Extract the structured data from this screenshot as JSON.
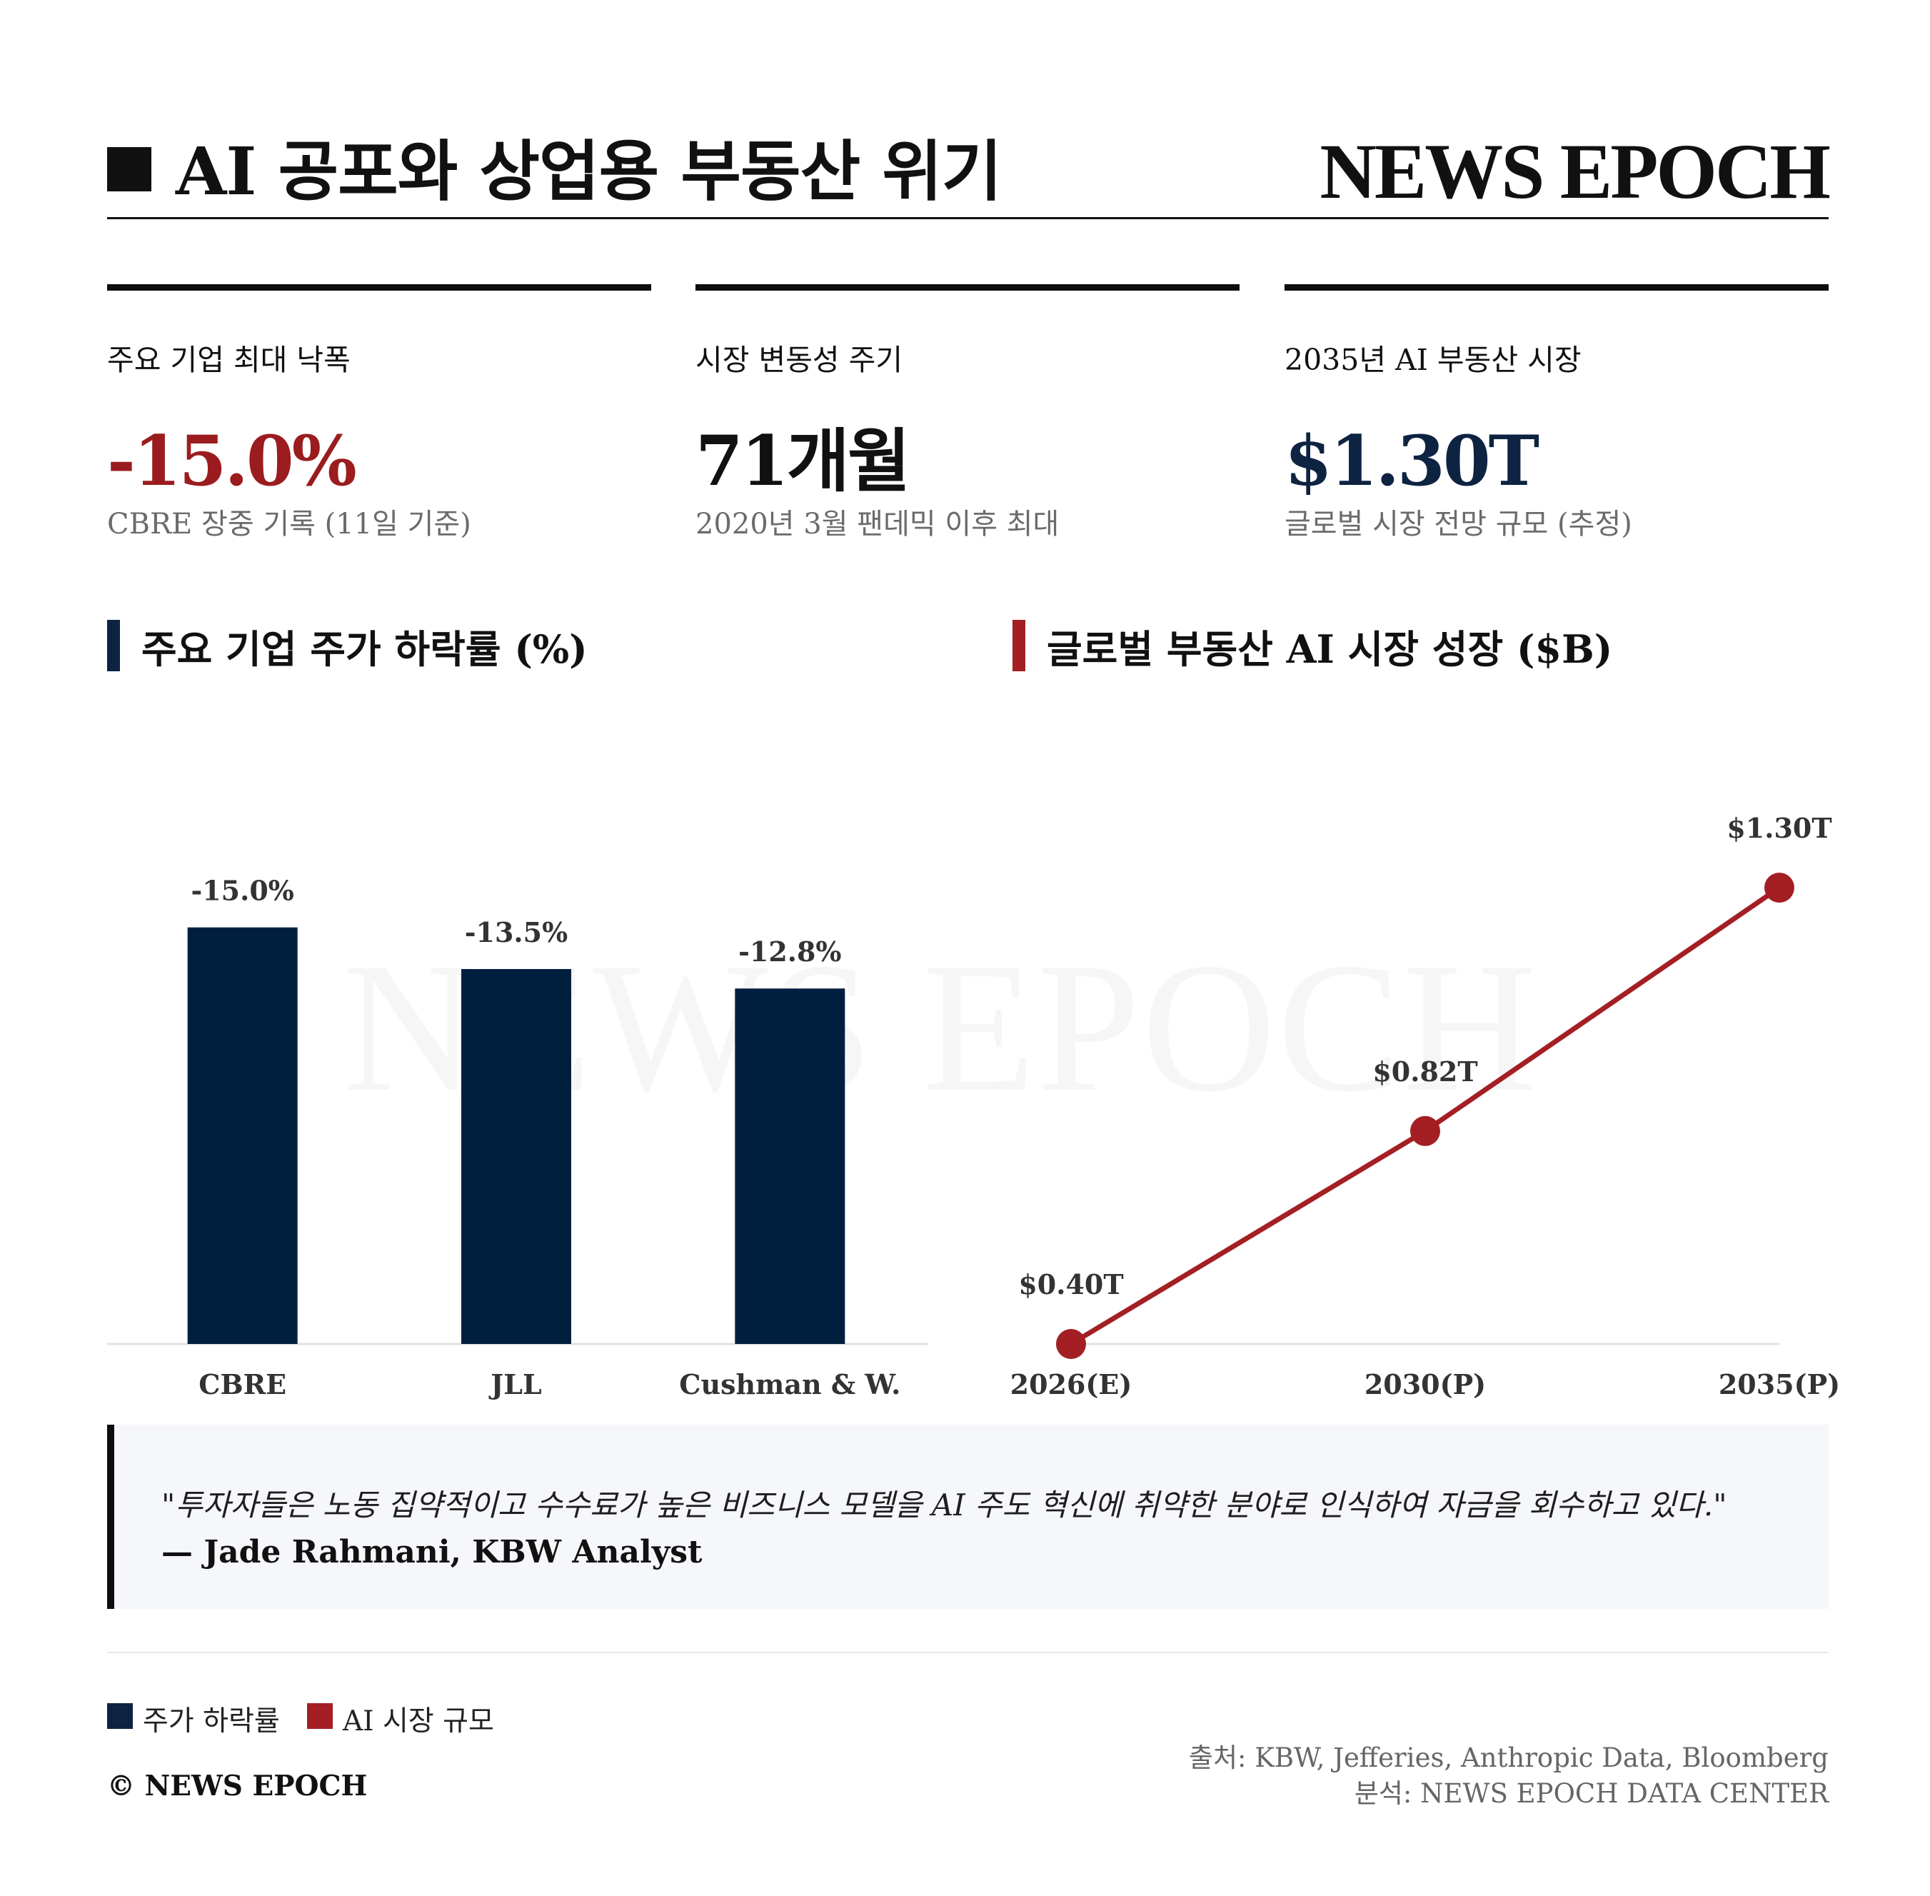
{
  "header": {
    "title": "AI 공포와 상업용 부동산 위기",
    "brand": "NEWS EPOCH"
  },
  "kpis": [
    {
      "label": "주요 기업 최대 낙폭",
      "value": "-15.0%",
      "sub": "CBRE 장중 기록 (11일 기준)",
      "color": "#9b1c1f"
    },
    {
      "label": "시장 변동성 주기",
      "value": "71개월",
      "sub": "2020년 3월 팬데믹 이후 최대",
      "color": "#111111"
    },
    {
      "label": "2035년 AI 부동산 시장",
      "value": "$1.30T",
      "sub": "글로벌 시장 전망 규모 (추정)",
      "color": "#0e2341"
    }
  ],
  "watermark": "NEWS EPOCH",
  "colors": {
    "navy": "#001f3f",
    "red": "#a31f24"
  },
  "chart_data": [
    {
      "type": "bar",
      "title": "주요 기업 주가 하락률 (%)",
      "categories": [
        "CBRE",
        "JLL",
        "Cushman & W."
      ],
      "values": [
        -15.0,
        -13.5,
        -12.8
      ],
      "data_labels": [
        "-15.0%",
        "-13.5%",
        "-12.8%"
      ],
      "ylim": [
        -18,
        0
      ],
      "color": "#001f3f",
      "grid": false
    },
    {
      "type": "line",
      "title": "글로벌 부동산 AI 시장 성장 ($B)",
      "x": [
        "2026(E)",
        "2030(P)",
        "2035(P)"
      ],
      "values": [
        0.4,
        0.82,
        1.3
      ],
      "data_labels": [
        "$0.40T",
        "$0.82T",
        "$1.30T"
      ],
      "ylim": [
        0.4,
        1.4
      ],
      "color": "#a31f24",
      "grid": false
    }
  ],
  "quote": {
    "text": "\"투자자들은 노동 집약적이고 수수료가 높은 비즈니스 모델을 AI 주도 혁신에 취약한 분야로 인식하여 자금을 회수하고 있다.\"",
    "author": "— Jade Rahmani, KBW Analyst"
  },
  "legend": [
    {
      "label": "주가 하락률",
      "color": "#001f3f"
    },
    {
      "label": "AI 시장 규모",
      "color": "#a31f24"
    }
  ],
  "footer": {
    "copyright": "© NEWS EPOCH",
    "source": "출처: KBW, Jefferies, Anthropic Data, Bloomberg",
    "analysis": "분석: NEWS EPOCH DATA CENTER"
  }
}
